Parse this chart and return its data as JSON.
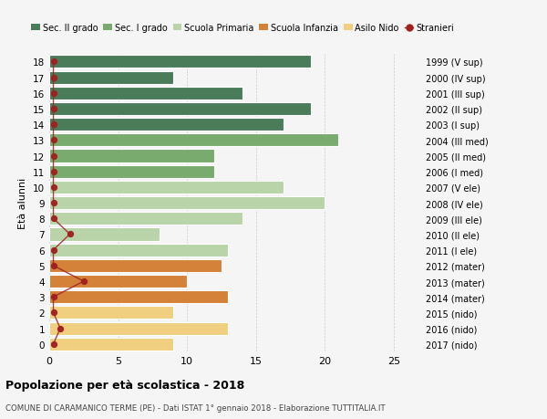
{
  "ages": [
    18,
    17,
    16,
    15,
    14,
    13,
    12,
    11,
    10,
    9,
    8,
    7,
    6,
    5,
    4,
    3,
    2,
    1,
    0
  ],
  "years": [
    "1999 (V sup)",
    "2000 (IV sup)",
    "2001 (III sup)",
    "2002 (II sup)",
    "2003 (I sup)",
    "2004 (III med)",
    "2005 (II med)",
    "2006 (I med)",
    "2007 (V ele)",
    "2008 (IV ele)",
    "2009 (III ele)",
    "2010 (II ele)",
    "2011 (I ele)",
    "2012 (mater)",
    "2013 (mater)",
    "2014 (mater)",
    "2015 (nido)",
    "2016 (nido)",
    "2017 (nido)"
  ],
  "bar_values": [
    19,
    9,
    14,
    19,
    17,
    21,
    12,
    12,
    17,
    20,
    14,
    8,
    13,
    12.5,
    10,
    13,
    9,
    13,
    9
  ],
  "bar_colors": [
    "#4a7c59",
    "#4a7c59",
    "#4a7c59",
    "#4a7c59",
    "#4a7c59",
    "#7aab6e",
    "#7aab6e",
    "#7aab6e",
    "#b8d4a8",
    "#b8d4a8",
    "#b8d4a8",
    "#b8d4a8",
    "#b8d4a8",
    "#d4813a",
    "#d4813a",
    "#d4813a",
    "#f0d080",
    "#f0d080",
    "#f0d080"
  ],
  "stranieri_x": [
    0.3,
    0.3,
    0.3,
    0.3,
    0.3,
    0.3,
    0.3,
    0.3,
    0.3,
    0.3,
    0.3,
    1.5,
    0.3,
    0.3,
    2.5,
    0.3,
    0.3,
    0.8,
    0.3
  ],
  "stranieri_color": "#a02020",
  "legend_labels": [
    "Sec. II grado",
    "Sec. I grado",
    "Scuola Primaria",
    "Scuola Infanzia",
    "Asilo Nido",
    "Stranieri"
  ],
  "legend_colors": [
    "#4a7c59",
    "#7aab6e",
    "#b8d4a8",
    "#d4813a",
    "#f0d080",
    "#a02020"
  ],
  "ylabel_left": "Età alunni",
  "xlim": [
    0,
    27
  ],
  "ylim": [
    -0.5,
    18.5
  ],
  "title": "Popolazione per età scolastica - 2018",
  "subtitle": "COMUNE DI CARAMANICO TERME (PE) - Dati ISTAT 1° gennaio 2018 - Elaborazione TUTTITALIA.IT",
  "bar_height": 0.82,
  "background_color": "#f5f5f5",
  "grid_color": "#cccccc"
}
